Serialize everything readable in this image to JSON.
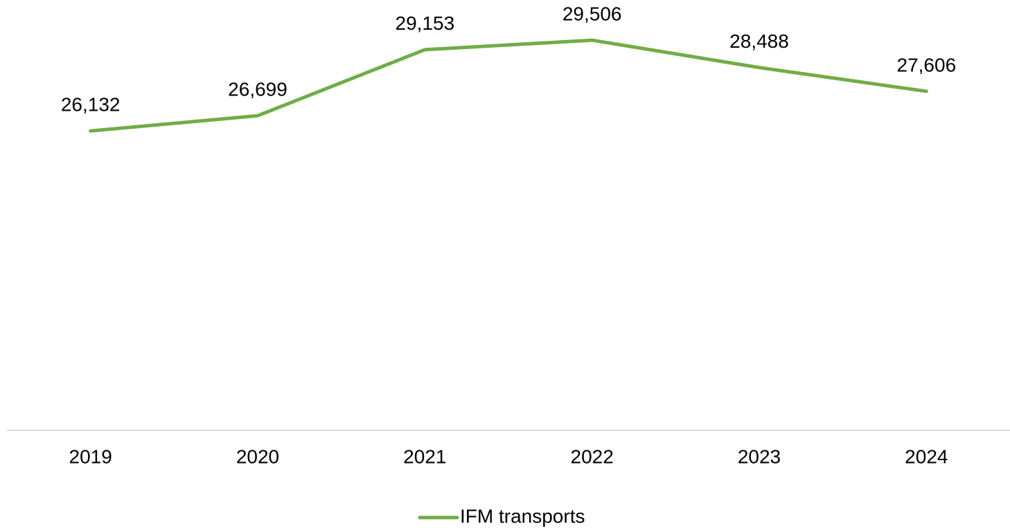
{
  "chart_data": {
    "type": "line",
    "categories": [
      "2019",
      "2020",
      "2021",
      "2022",
      "2023",
      "2024"
    ],
    "series": [
      {
        "name": "IFM transports",
        "color": "#70ad47",
        "values": [
          26132,
          26699,
          29153,
          29506,
          28488,
          27606
        ],
        "value_labels": [
          "26,132",
          "26,699",
          "29,153",
          "29,506",
          "28,488",
          "27,606"
        ]
      }
    ],
    "ylim": [
      15000,
      31000
    ],
    "legend": "bottom"
  }
}
